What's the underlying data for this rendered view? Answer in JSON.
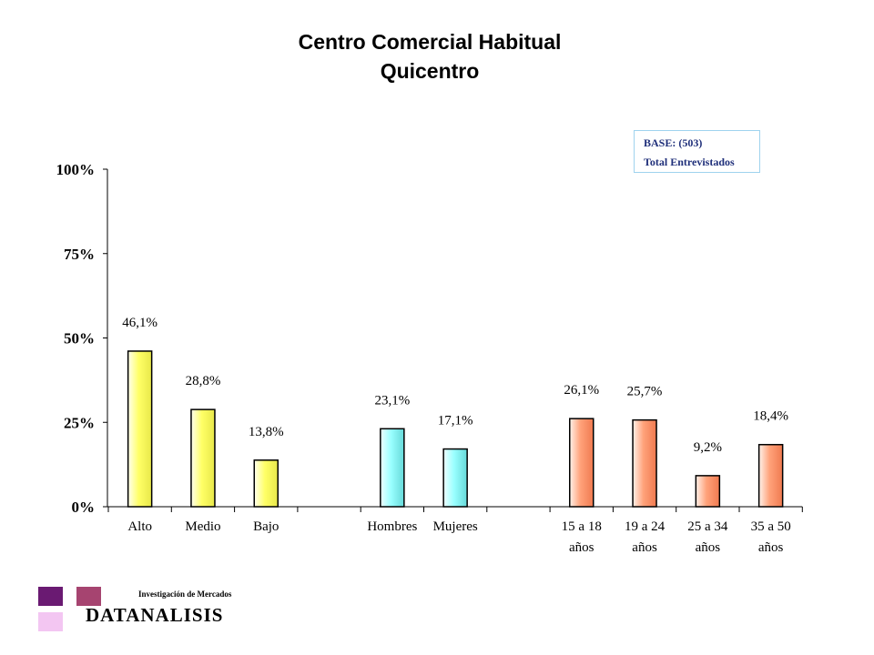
{
  "title": {
    "line1": "Centro Comercial Habitual",
    "line2": "Quicentro"
  },
  "base_box": {
    "line1": "BASE:  (503)",
    "line2": "Total Entrevistados"
  },
  "logo": {
    "subtitle": "Investigación de Mercados",
    "name": "DATANALISIS"
  },
  "colors": {
    "group_nivel": "#ffff66",
    "group_sexo": "#99ffff",
    "group_edad": "#ffa27a"
  },
  "chart_data": {
    "type": "bar",
    "ylim": [
      0,
      100
    ],
    "y_ticks": [
      "0%",
      "25%",
      "50%",
      "75%",
      "100%"
    ],
    "y_tick_values": [
      0,
      25,
      50,
      75,
      100
    ],
    "grid": false,
    "categories": [
      "Alto",
      "Medio",
      "Bajo",
      "",
      "Hombres",
      "Mujeres",
      "",
      "15 a 18 años",
      "19 a 24 años",
      "25 a 34 años",
      "35 a 50 años"
    ],
    "category_lines": [
      [
        "Alto"
      ],
      [
        "Medio"
      ],
      [
        "Bajo"
      ],
      [
        ""
      ],
      [
        "Hombres"
      ],
      [
        "Mujeres"
      ],
      [
        ""
      ],
      [
        "15 a 18",
        "años"
      ],
      [
        "19 a 24",
        "años"
      ],
      [
        "25 a 34",
        "años"
      ],
      [
        "35 a 50",
        "años"
      ]
    ],
    "values": [
      46.1,
      28.8,
      13.8,
      null,
      23.1,
      17.1,
      null,
      26.1,
      25.7,
      9.2,
      18.4
    ],
    "data_labels": [
      "46,1%",
      "28,8%",
      "13,8%",
      "",
      "23,1%",
      "17,1%",
      "",
      "26,1%",
      "25,7%",
      "9,2%",
      "18,4%"
    ],
    "bar_groups": [
      "nivel",
      "nivel",
      "nivel",
      "",
      "sexo",
      "sexo",
      "",
      "edad",
      "edad",
      "edad",
      "edad"
    ]
  }
}
